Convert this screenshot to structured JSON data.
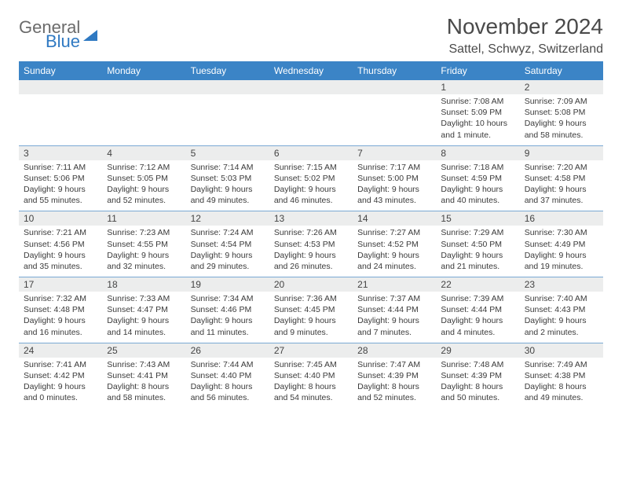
{
  "logo": {
    "text1": "General",
    "text2": "Blue"
  },
  "title": "November 2024",
  "location": "Sattel, Schwyz, Switzerland",
  "colors": {
    "header_bg": "#3b84c6",
    "header_text": "#ffffff",
    "daynum_bg": "#eceded",
    "rule": "#7aa9d4",
    "text": "#3a3a3a"
  },
  "day_names": [
    "Sunday",
    "Monday",
    "Tuesday",
    "Wednesday",
    "Thursday",
    "Friday",
    "Saturday"
  ],
  "weeks": [
    [
      {
        "n": "",
        "lines": []
      },
      {
        "n": "",
        "lines": []
      },
      {
        "n": "",
        "lines": []
      },
      {
        "n": "",
        "lines": []
      },
      {
        "n": "",
        "lines": []
      },
      {
        "n": "1",
        "lines": [
          "Sunrise: 7:08 AM",
          "Sunset: 5:09 PM",
          "Daylight: 10 hours",
          "and 1 minute."
        ]
      },
      {
        "n": "2",
        "lines": [
          "Sunrise: 7:09 AM",
          "Sunset: 5:08 PM",
          "Daylight: 9 hours",
          "and 58 minutes."
        ]
      }
    ],
    [
      {
        "n": "3",
        "lines": [
          "Sunrise: 7:11 AM",
          "Sunset: 5:06 PM",
          "Daylight: 9 hours",
          "and 55 minutes."
        ]
      },
      {
        "n": "4",
        "lines": [
          "Sunrise: 7:12 AM",
          "Sunset: 5:05 PM",
          "Daylight: 9 hours",
          "and 52 minutes."
        ]
      },
      {
        "n": "5",
        "lines": [
          "Sunrise: 7:14 AM",
          "Sunset: 5:03 PM",
          "Daylight: 9 hours",
          "and 49 minutes."
        ]
      },
      {
        "n": "6",
        "lines": [
          "Sunrise: 7:15 AM",
          "Sunset: 5:02 PM",
          "Daylight: 9 hours",
          "and 46 minutes."
        ]
      },
      {
        "n": "7",
        "lines": [
          "Sunrise: 7:17 AM",
          "Sunset: 5:00 PM",
          "Daylight: 9 hours",
          "and 43 minutes."
        ]
      },
      {
        "n": "8",
        "lines": [
          "Sunrise: 7:18 AM",
          "Sunset: 4:59 PM",
          "Daylight: 9 hours",
          "and 40 minutes."
        ]
      },
      {
        "n": "9",
        "lines": [
          "Sunrise: 7:20 AM",
          "Sunset: 4:58 PM",
          "Daylight: 9 hours",
          "and 37 minutes."
        ]
      }
    ],
    [
      {
        "n": "10",
        "lines": [
          "Sunrise: 7:21 AM",
          "Sunset: 4:56 PM",
          "Daylight: 9 hours",
          "and 35 minutes."
        ]
      },
      {
        "n": "11",
        "lines": [
          "Sunrise: 7:23 AM",
          "Sunset: 4:55 PM",
          "Daylight: 9 hours",
          "and 32 minutes."
        ]
      },
      {
        "n": "12",
        "lines": [
          "Sunrise: 7:24 AM",
          "Sunset: 4:54 PM",
          "Daylight: 9 hours",
          "and 29 minutes."
        ]
      },
      {
        "n": "13",
        "lines": [
          "Sunrise: 7:26 AM",
          "Sunset: 4:53 PM",
          "Daylight: 9 hours",
          "and 26 minutes."
        ]
      },
      {
        "n": "14",
        "lines": [
          "Sunrise: 7:27 AM",
          "Sunset: 4:52 PM",
          "Daylight: 9 hours",
          "and 24 minutes."
        ]
      },
      {
        "n": "15",
        "lines": [
          "Sunrise: 7:29 AM",
          "Sunset: 4:50 PM",
          "Daylight: 9 hours",
          "and 21 minutes."
        ]
      },
      {
        "n": "16",
        "lines": [
          "Sunrise: 7:30 AM",
          "Sunset: 4:49 PM",
          "Daylight: 9 hours",
          "and 19 minutes."
        ]
      }
    ],
    [
      {
        "n": "17",
        "lines": [
          "Sunrise: 7:32 AM",
          "Sunset: 4:48 PM",
          "Daylight: 9 hours",
          "and 16 minutes."
        ]
      },
      {
        "n": "18",
        "lines": [
          "Sunrise: 7:33 AM",
          "Sunset: 4:47 PM",
          "Daylight: 9 hours",
          "and 14 minutes."
        ]
      },
      {
        "n": "19",
        "lines": [
          "Sunrise: 7:34 AM",
          "Sunset: 4:46 PM",
          "Daylight: 9 hours",
          "and 11 minutes."
        ]
      },
      {
        "n": "20",
        "lines": [
          "Sunrise: 7:36 AM",
          "Sunset: 4:45 PM",
          "Daylight: 9 hours",
          "and 9 minutes."
        ]
      },
      {
        "n": "21",
        "lines": [
          "Sunrise: 7:37 AM",
          "Sunset: 4:44 PM",
          "Daylight: 9 hours",
          "and 7 minutes."
        ]
      },
      {
        "n": "22",
        "lines": [
          "Sunrise: 7:39 AM",
          "Sunset: 4:44 PM",
          "Daylight: 9 hours",
          "and 4 minutes."
        ]
      },
      {
        "n": "23",
        "lines": [
          "Sunrise: 7:40 AM",
          "Sunset: 4:43 PM",
          "Daylight: 9 hours",
          "and 2 minutes."
        ]
      }
    ],
    [
      {
        "n": "24",
        "lines": [
          "Sunrise: 7:41 AM",
          "Sunset: 4:42 PM",
          "Daylight: 9 hours",
          "and 0 minutes."
        ]
      },
      {
        "n": "25",
        "lines": [
          "Sunrise: 7:43 AM",
          "Sunset: 4:41 PM",
          "Daylight: 8 hours",
          "and 58 minutes."
        ]
      },
      {
        "n": "26",
        "lines": [
          "Sunrise: 7:44 AM",
          "Sunset: 4:40 PM",
          "Daylight: 8 hours",
          "and 56 minutes."
        ]
      },
      {
        "n": "27",
        "lines": [
          "Sunrise: 7:45 AM",
          "Sunset: 4:40 PM",
          "Daylight: 8 hours",
          "and 54 minutes."
        ]
      },
      {
        "n": "28",
        "lines": [
          "Sunrise: 7:47 AM",
          "Sunset: 4:39 PM",
          "Daylight: 8 hours",
          "and 52 minutes."
        ]
      },
      {
        "n": "29",
        "lines": [
          "Sunrise: 7:48 AM",
          "Sunset: 4:39 PM",
          "Daylight: 8 hours",
          "and 50 minutes."
        ]
      },
      {
        "n": "30",
        "lines": [
          "Sunrise: 7:49 AM",
          "Sunset: 4:38 PM",
          "Daylight: 8 hours",
          "and 49 minutes."
        ]
      }
    ]
  ]
}
